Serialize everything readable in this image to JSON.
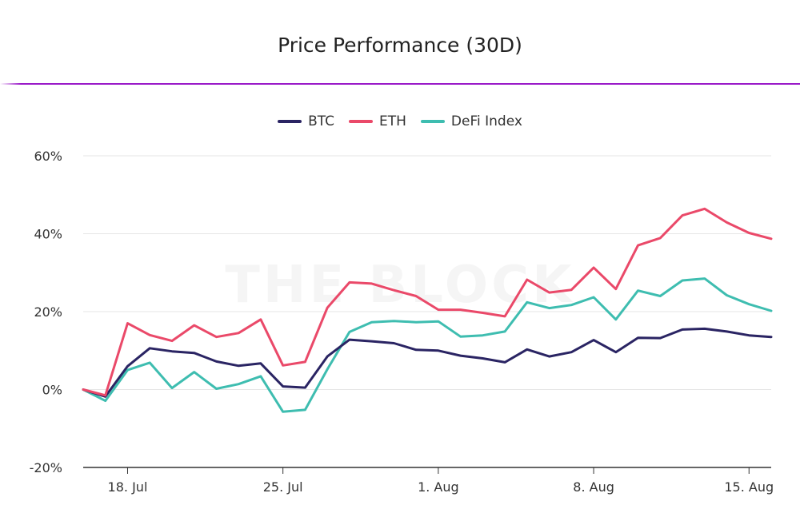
{
  "chart_data": {
    "type": "line",
    "title": "Price Performance (30D)",
    "watermark": "THE BLOCK",
    "ylim": [
      -20,
      60
    ],
    "y_ticks": [
      -20,
      0,
      20,
      40,
      60
    ],
    "y_tick_labels": [
      "-20%",
      "0%",
      "20%",
      "40%",
      "60%"
    ],
    "x_ticks": [
      {
        "label": "18. Jul",
        "day": 2
      },
      {
        "label": "25. Jul",
        "day": 9
      },
      {
        "label": "1. Aug",
        "day": 16
      },
      {
        "label": "8. Aug",
        "day": 23
      },
      {
        "label": "15. Aug",
        "day": 30
      }
    ],
    "x": [
      "16. Jul",
      "17. Jul",
      "18. Jul",
      "19. Jul",
      "20. Jul",
      "21. Jul",
      "22. Jul",
      "23. Jul",
      "24. Jul",
      "25. Jul",
      "26. Jul",
      "27. Jul",
      "28. Jul",
      "29. Jul",
      "30. Jul",
      "31. Jul",
      "1. Aug",
      "2. Aug",
      "3. Aug",
      "4. Aug",
      "5. Aug",
      "6. Aug",
      "7. Aug",
      "8. Aug",
      "9. Aug",
      "10. Aug",
      "11. Aug",
      "12. Aug",
      "13. Aug",
      "14. Aug",
      "15. Aug",
      "16. Aug"
    ],
    "series": [
      {
        "name": "BTC",
        "color": "#2a2463",
        "values": [
          0,
          -1.8,
          6,
          10.6,
          9.8,
          9.4,
          7.2,
          6.1,
          6.7,
          0.8,
          0.5,
          8.5,
          12.8,
          12.4,
          11.9,
          10.2,
          10,
          8.7,
          8,
          7,
          10.3,
          8.5,
          9.6,
          12.7,
          9.6,
          13.3,
          13.2,
          15.4,
          15.6,
          14.9,
          13.9,
          13.5
        ]
      },
      {
        "name": "ETH",
        "color": "#ea4969",
        "values": [
          0,
          -1.5,
          17,
          14,
          12.5,
          16.5,
          13.5,
          14.5,
          18,
          6.2,
          7.1,
          21,
          27.5,
          27.2,
          25.5,
          24,
          20.5,
          20.5,
          19.7,
          18.8,
          28.2,
          24.9,
          25.6,
          31.3,
          25.8,
          37,
          38.9,
          44.7,
          46.4,
          42.9,
          40.2,
          38.7
        ]
      },
      {
        "name": "DeFi Index",
        "color": "#3ebdb0",
        "values": [
          0,
          -2.9,
          5,
          6.9,
          0.4,
          4.5,
          0.2,
          1.4,
          3.4,
          -5.7,
          -5.2,
          5.2,
          14.8,
          17.3,
          17.6,
          17.3,
          17.5,
          13.6,
          13.9,
          14.9,
          22.4,
          20.9,
          21.7,
          23.7,
          18,
          25.4,
          24,
          28,
          28.5,
          24.2,
          21.9,
          20.2
        ]
      }
    ],
    "grid": true,
    "legend_position": "top"
  },
  "colors": {
    "accent_rule": "#9a1ac8",
    "grid": "#e6e6e6",
    "axis": "#333333"
  }
}
